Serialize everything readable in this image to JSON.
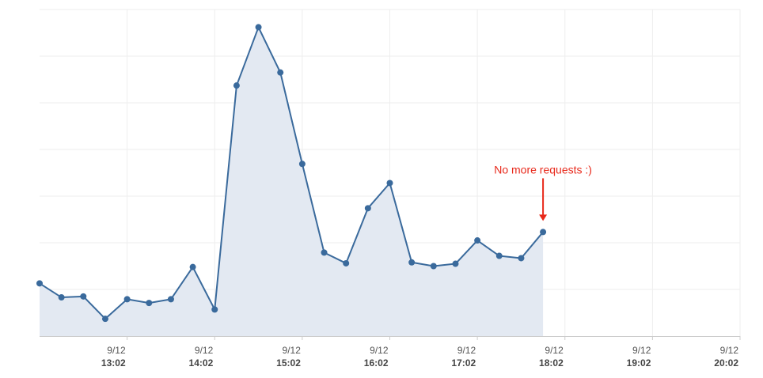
{
  "chart_data": {
    "type": "area",
    "x_tick_labels": [
      {
        "date": "9/12",
        "time": "13:02"
      },
      {
        "date": "9/12",
        "time": "14:02"
      },
      {
        "date": "9/12",
        "time": "15:02"
      },
      {
        "date": "9/12",
        "time": "16:02"
      },
      {
        "date": "9/12",
        "time": "17:02"
      },
      {
        "date": "9/12",
        "time": "18:02"
      },
      {
        "date": "9/12",
        "time": "19:02"
      },
      {
        "date": "9/12",
        "time": "20:02"
      }
    ],
    "x_unit": "minutes after 12:02 on 9/12",
    "xlim": [
      0,
      480
    ],
    "ylim": [
      0,
      7
    ],
    "y_gridlines": 7,
    "grid": true,
    "series": [
      {
        "color": "#3a6a9c",
        "fill": "#e3e9f2",
        "x": [
          0,
          15,
          30,
          45,
          60,
          75,
          90,
          105,
          120,
          135,
          150,
          165,
          180,
          195,
          210,
          225,
          240,
          255,
          270,
          285,
          300,
          315,
          330,
          345
        ],
        "y": [
          1.13,
          0.83,
          0.85,
          0.37,
          0.79,
          0.71,
          0.79,
          1.48,
          0.57,
          5.37,
          6.62,
          5.65,
          3.69,
          1.79,
          1.56,
          2.74,
          3.28,
          1.58,
          1.5,
          1.55,
          2.05,
          1.72,
          1.67,
          2.23
        ]
      }
    ],
    "annotations": [
      {
        "text": "No more requests :)",
        "x": 345,
        "color": "#e8291b"
      }
    ]
  }
}
